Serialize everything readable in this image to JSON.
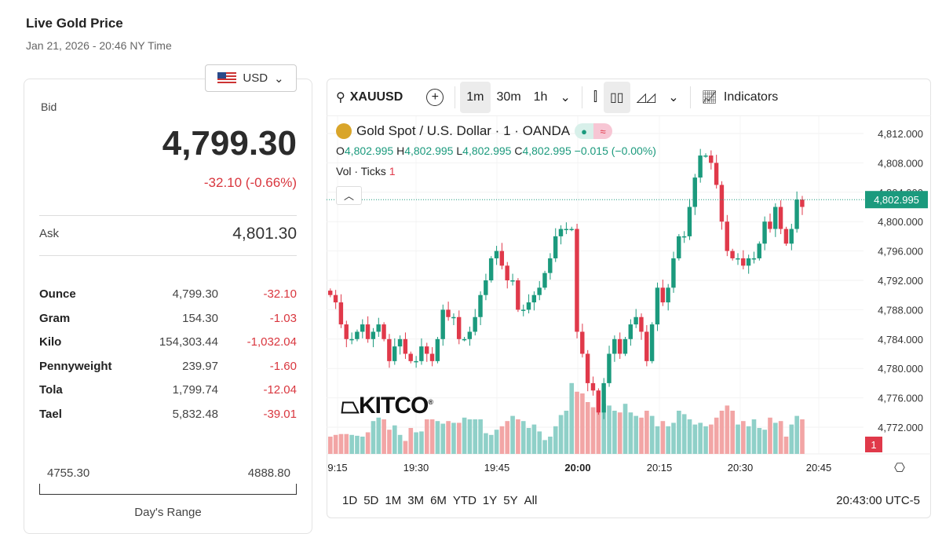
{
  "header": {
    "title": "Live Gold Price",
    "datetime": "Jan 21, 2026 - 20:46 NY Time"
  },
  "currency": {
    "selected": "USD",
    "icon": "us-flag-icon"
  },
  "quote": {
    "bid_label": "Bid",
    "bid": "4,799.30",
    "change": "-32.10 (-0.66%)",
    "ask_label": "Ask",
    "ask": "4,801.30"
  },
  "units": [
    {
      "unit": "Ounce",
      "price": "4,799.30",
      "change": "-32.10"
    },
    {
      "unit": "Gram",
      "price": "154.30",
      "change": "-1.03"
    },
    {
      "unit": "Kilo",
      "price": "154,303.44",
      "change": "-1,032.04"
    },
    {
      "unit": "Pennyweight",
      "price": "239.97",
      "change": "-1.60"
    },
    {
      "unit": "Tola",
      "price": "1,799.74",
      "change": "-12.04"
    },
    {
      "unit": "Tael",
      "price": "5,832.48",
      "change": "-39.01"
    }
  ],
  "range": {
    "low": "4755.30",
    "high": "4888.80",
    "label": "Day's Range"
  },
  "toolbar": {
    "symbol": "XAUUSD",
    "intervals": [
      "1m",
      "30m",
      "1h"
    ],
    "selected_interval": "1m",
    "indicators": "Indicators"
  },
  "legend": {
    "title": "Gold Spot / U.S. Dollar · 1 · OANDA",
    "o": "4,802.995",
    "h": "4,802.995",
    "l": "4,802.995",
    "c": "4,802.995",
    "change": "−0.015 (−0.00%)",
    "vol_label": "Vol · Ticks",
    "vol_value": "1",
    "logo": "KITCO"
  },
  "colors": {
    "up": "#1b9a7d",
    "down": "#e0394a",
    "vol_up": "#8fd0c8",
    "vol_down": "#f2a5a5"
  },
  "ranges": [
    "1D",
    "5D",
    "1M",
    "3M",
    "6M",
    "YTD",
    "1Y",
    "5Y",
    "All"
  ],
  "clock": "20:43:00 UTC-5",
  "chart_data": {
    "type": "candlestick",
    "interval": "1m",
    "y_ticks": [
      "4,812.000",
      "4,808.000",
      "4,804.000",
      "4,800.000",
      "4,796.000",
      "4,792.000",
      "4,788.000",
      "4,784.000",
      "4,780.000",
      "4,776.000",
      "4,772.000"
    ],
    "ylim": [
      4768.5,
      4814
    ],
    "x_ticks": [
      "9:15",
      "19:30",
      "19:45",
      "20:00",
      "20:15",
      "20:30",
      "20:45"
    ],
    "last_price": "4,802.995",
    "vol_badge": "1",
    "closes": [
      4790,
      4789,
      4786,
      4784,
      4784,
      4785,
      4786,
      4784,
      4785,
      4786,
      4784,
      4781,
      4783,
      4784,
      4782,
      4781,
      4781,
      4783,
      4782,
      4781,
      4784,
      4788,
      4787,
      4787,
      4784,
      4784,
      4785,
      4787,
      4790,
      4792,
      4795,
      4796,
      4794,
      4792,
      4792,
      4788,
      4788,
      4789,
      4790,
      4791,
      4793,
      4795,
      4798,
      4799,
      4799,
      4799,
      4785,
      4782,
      4778,
      4777,
      4774,
      4778,
      4782,
      4784,
      4782,
      4784,
      4786,
      4787,
      4785,
      4781,
      4786,
      4791,
      4789,
      4791,
      4795,
      4798,
      4798,
      4802,
      4806,
      4809,
      4809,
      4808,
      4805,
      4800,
      4796,
      4795,
      4795,
      4794,
      4795,
      4795,
      4797,
      4800,
      4799,
      4802,
      4799,
      4797,
      4799,
      4803,
      4802
    ],
    "volumes": [
      20,
      22,
      23,
      23,
      22,
      21,
      20,
      25,
      38,
      42,
      40,
      28,
      33,
      22,
      15,
      30,
      25,
      26,
      40,
      40,
      38,
      35,
      38,
      36,
      36,
      42,
      40,
      40,
      40,
      24,
      22,
      28,
      32,
      38,
      44,
      40,
      38,
      30,
      34,
      26,
      16,
      20,
      32,
      45,
      50,
      82,
      72,
      70,
      60,
      54,
      48,
      58,
      56,
      50,
      48,
      58,
      48,
      44,
      42,
      50,
      44,
      32,
      38,
      32,
      36,
      50,
      46,
      40,
      34,
      36,
      32,
      34,
      42,
      50,
      56,
      50,
      34,
      38,
      32,
      40,
      30,
      28,
      42,
      36,
      38,
      20,
      34,
      44,
      40
    ]
  }
}
